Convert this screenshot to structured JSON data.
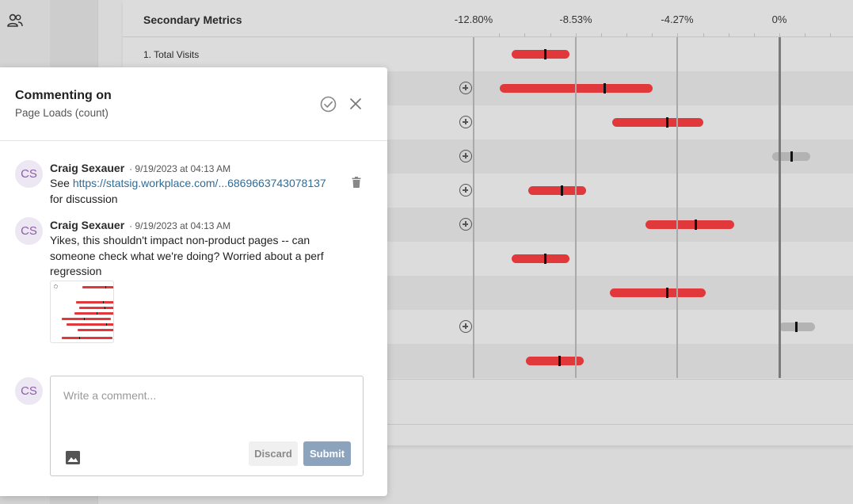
{
  "background": {
    "rail_icon": "users-icon",
    "metrics": {
      "title": "Secondary Metrics",
      "ticks": [
        "-12.80%",
        "-8.53%",
        "-4.27%",
        "0%"
      ],
      "first_row_label": "1. Total Visits",
      "rows": [
        {
          "ci": [
            -11.2,
            -8.8
          ],
          "point": -9.8,
          "color": "red",
          "plus": false
        },
        {
          "ci": [
            -11.7,
            -5.3
          ],
          "point": -7.3,
          "color": "red",
          "plus": true
        },
        {
          "ci": [
            -7.0,
            -3.2
          ],
          "point": -4.7,
          "color": "red",
          "plus": true
        },
        {
          "ci": [
            -0.3,
            1.3
          ],
          "point": 0.5,
          "color": "gray",
          "plus": true
        },
        {
          "ci": [
            -10.5,
            -8.1
          ],
          "point": -9.1,
          "color": "red",
          "plus": true
        },
        {
          "ci": [
            -5.6,
            -1.9
          ],
          "point": -3.5,
          "color": "red",
          "plus": true
        },
        {
          "ci": [
            -11.2,
            -8.8
          ],
          "point": -9.8,
          "color": "red",
          "plus": false
        },
        {
          "ci": [
            -7.1,
            -3.1
          ],
          "point": -4.7,
          "color": "red",
          "plus": false
        },
        {
          "ci": [
            0.0,
            1.5
          ],
          "point": 0.7,
          "color": "gray",
          "plus": true
        },
        {
          "ci": [
            -10.6,
            -8.2
          ],
          "point": -9.2,
          "color": "red",
          "plus": false
        }
      ]
    }
  },
  "panel": {
    "title": "Commenting on",
    "subtitle": "Page Loads (count)",
    "resolve_icon": "check-circle-icon",
    "close_icon": "close-icon",
    "comments": [
      {
        "initials": "CS",
        "author": "Craig Sexauer",
        "time": "· 9/19/2023 at 04:13 AM",
        "text_prefix": "See ",
        "link": "https://statsig.workplace.com/...6869663743078137",
        "text_suffix": "for discussion",
        "trash_icon": "trash-icon"
      },
      {
        "initials": "CS",
        "author": "Craig Sexauer",
        "time": "· 9/19/2023 at 04:13 AM",
        "text": "Yikes, this shouldn't impact non-product pages -- can someone check what we're doing? Worried about a perf regression",
        "attachment_icon": "chart-thumbnail-image"
      }
    ],
    "composer": {
      "initials": "CS",
      "placeholder": "Write a comment...",
      "image_icon": "image-icon",
      "discard_label": "Discard",
      "submit_label": "Submit"
    },
    "colors": {
      "red_bar": "#e0383b",
      "gray_bar": "#b3b3b3",
      "avatar_bg": "#ece7f2",
      "avatar_text": "#8b5fa8",
      "link": "#2e6c98",
      "submit_bg": "#8ba3bd"
    }
  }
}
